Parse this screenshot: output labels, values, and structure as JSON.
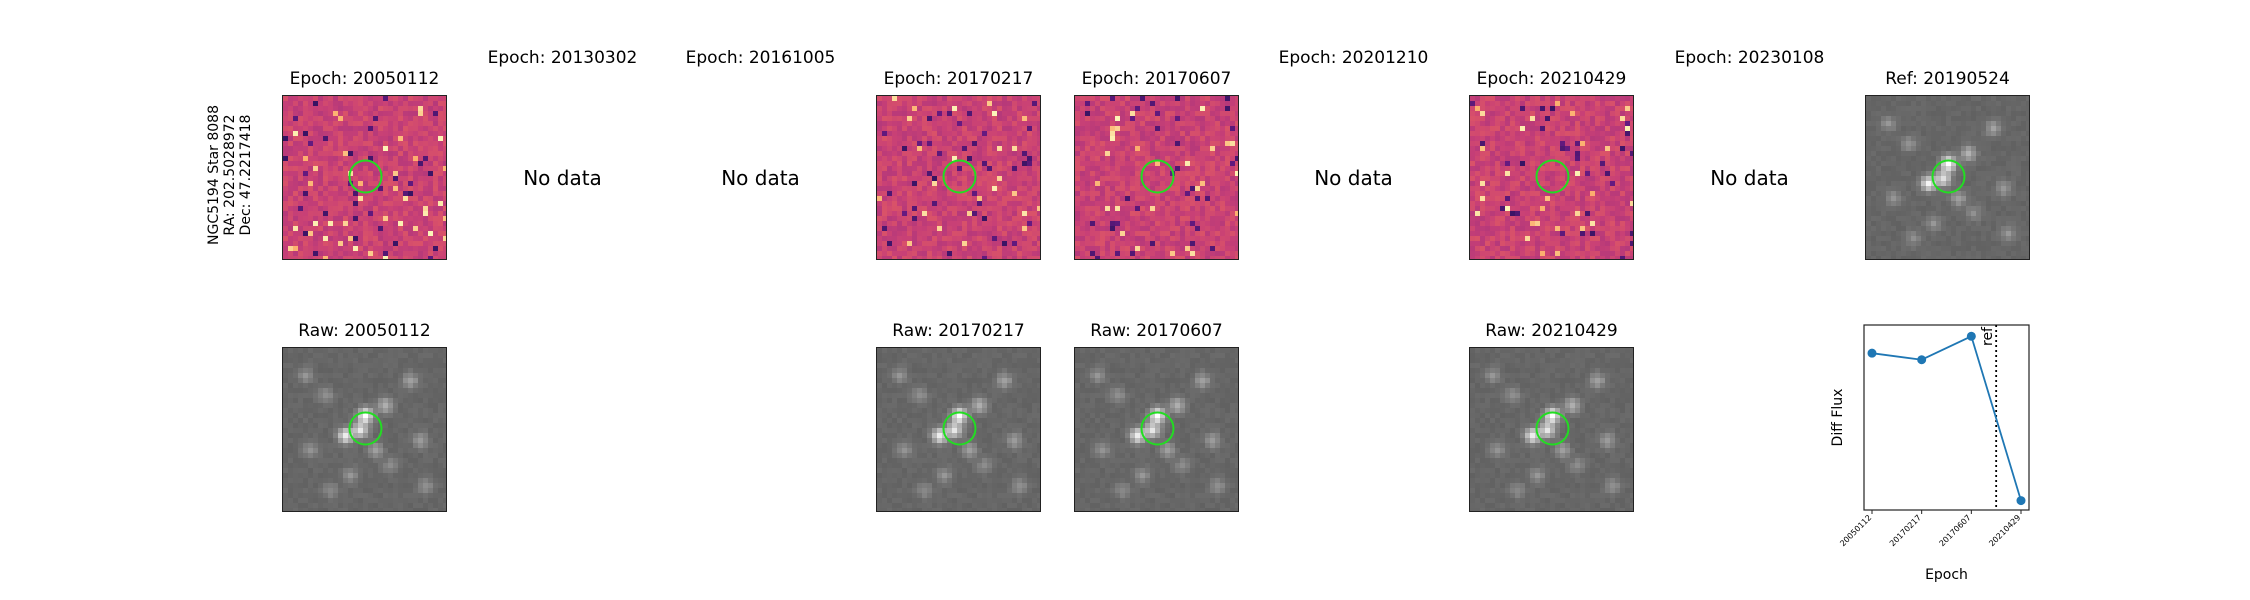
{
  "star_label": [
    "NGC5194 Star 8088",
    "RA: 202.5028972",
    "Dec: 47.2217418"
  ],
  "no_data_text": "No data",
  "top_row": [
    {
      "title": "Epoch: 20050112",
      "has_data": true,
      "seed": 11
    },
    {
      "title": "Epoch: 20130302",
      "has_data": false
    },
    {
      "title": "Epoch: 20161005",
      "has_data": false
    },
    {
      "title": "Epoch: 20170217",
      "has_data": true,
      "seed": 23
    },
    {
      "title": "Epoch: 20170607",
      "has_data": true,
      "seed": 37
    },
    {
      "title": "Epoch: 20201210",
      "has_data": false
    },
    {
      "title": "Epoch: 20210429",
      "has_data": true,
      "seed": 51
    },
    {
      "title": "Epoch: 20230108",
      "has_data": false
    },
    {
      "title": "Ref: 20190524",
      "has_data": true,
      "seed": 7
    }
  ],
  "bottom_row": [
    {
      "title": "Raw: 20050112",
      "col": 0
    },
    {
      "title": "Raw: 20170217",
      "col": 3
    },
    {
      "title": "Raw: 20170607",
      "col": 4
    },
    {
      "title": "Raw: 20210429",
      "col": 6
    }
  ],
  "colors": {
    "diff_cmap": "magma",
    "raw_cmap": "gray",
    "circle": "#22dd22",
    "series": "#1f77b4"
  },
  "chart_data": {
    "type": "line",
    "x": [
      "20050112",
      "20170217",
      "20170607",
      "20210429"
    ],
    "y": [
      0.62,
      0.55,
      0.8,
      -0.95
    ],
    "xlabel": "Epoch",
    "ylabel": "Diff Flux",
    "ref_line": {
      "label": "ref",
      "position_between": [
        "20170607",
        "20210429"
      ],
      "fraction": 0.5
    },
    "grid": false
  }
}
